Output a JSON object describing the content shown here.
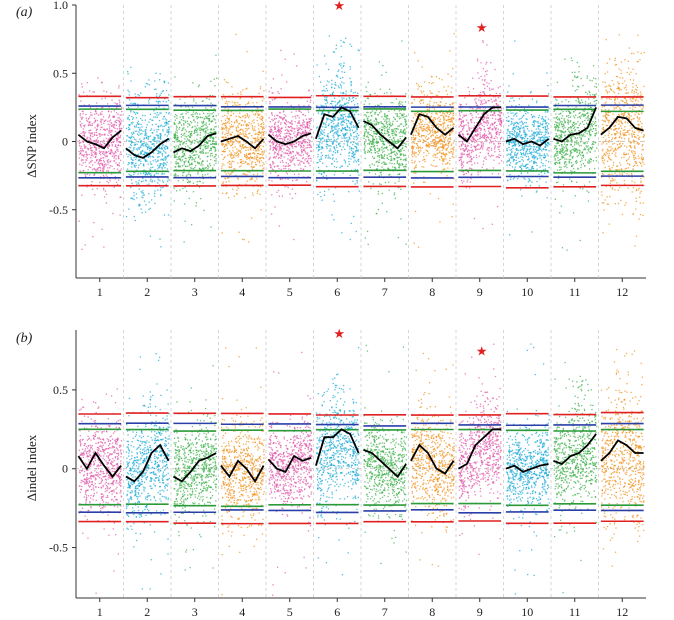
{
  "chart_data": [
    {
      "type": "scatter",
      "panel_label": "(a)",
      "ylabel": "ΔSNP index",
      "ylim": [
        -1.0,
        1.0
      ],
      "yticks": [
        -0.5,
        0,
        0.5,
        1.0
      ],
      "ytick_labels": [
        "-0.5",
        "0",
        "0.5",
        "1.0"
      ],
      "categories": [
        "1",
        "2",
        "3",
        "4",
        "5",
        "6",
        "7",
        "8",
        "9",
        "10",
        "11",
        "12"
      ],
      "category_colors": [
        "#e05aa8",
        "#1aaad6",
        "#3db04b",
        "#f0921c",
        "#e05aa8",
        "#1aaad6",
        "#3db04b",
        "#f0921c",
        "#e05aa8",
        "#1aaad6",
        "#3db04b",
        "#f0921c"
      ],
      "spread": [
        0.16,
        0.2,
        0.16,
        0.17,
        0.14,
        0.19,
        0.15,
        0.16,
        0.15,
        0.14,
        0.16,
        0.24
      ],
      "thresholds": {
        "p99_red": [
          0.33,
          -0.33
        ],
        "p95_blue": [
          0.26,
          -0.26
        ],
        "p90_green": [
          0.23,
          -0.22
        ]
      },
      "sliding_window_mean": [
        [
          0.05,
          0.0,
          -0.02,
          -0.05,
          0.03,
          0.08
        ],
        [
          -0.05,
          -0.1,
          -0.12,
          -0.08,
          -0.02,
          0.02
        ],
        [
          -0.08,
          -0.05,
          -0.07,
          -0.03,
          0.04,
          0.06
        ],
        [
          0.0,
          0.02,
          0.04,
          0.0,
          -0.05,
          0.02
        ],
        [
          0.05,
          0.0,
          -0.02,
          0.0,
          0.04,
          0.06
        ],
        [
          0.02,
          0.2,
          0.18,
          0.25,
          0.22,
          0.1
        ],
        [
          0.15,
          0.12,
          0.05,
          0.0,
          -0.05,
          0.03
        ],
        [
          0.05,
          0.2,
          0.18,
          0.1,
          0.05,
          0.1
        ],
        [
          0.05,
          0.0,
          0.1,
          0.2,
          0.25,
          0.25
        ],
        [
          0.0,
          0.02,
          -0.02,
          0.0,
          -0.03,
          0.02
        ],
        [
          0.02,
          0.0,
          0.05,
          0.06,
          0.1,
          0.25
        ],
        [
          0.05,
          0.1,
          0.18,
          0.17,
          0.1,
          0.08
        ]
      ],
      "peaks": [
        {
          "category": "6",
          "max": 0.8
        },
        {
          "category": "9",
          "max": 0.6
        },
        {
          "category": "11",
          "max": 0.65
        }
      ],
      "significant": [
        {
          "category": "6",
          "y": 1.0,
          "marker": "★"
        },
        {
          "category": "9",
          "y": 0.84,
          "marker": "★"
        }
      ]
    },
    {
      "type": "scatter",
      "panel_label": "(b)",
      "ylabel": "Δindel index",
      "ylim": [
        -0.82,
        0.88
      ],
      "yticks": [
        -0.5,
        0,
        0.5
      ],
      "ytick_labels": [
        "-0.5",
        "0",
        "0.5"
      ],
      "categories": [
        "1",
        "2",
        "3",
        "4",
        "5",
        "6",
        "7",
        "8",
        "9",
        "10",
        "11",
        "12"
      ],
      "category_colors": [
        "#e05aa8",
        "#1aaad6",
        "#3db04b",
        "#f0921c",
        "#e05aa8",
        "#1aaad6",
        "#3db04b",
        "#f0921c",
        "#e05aa8",
        "#1aaad6",
        "#3db04b",
        "#f0921c"
      ],
      "spread": [
        0.15,
        0.17,
        0.15,
        0.16,
        0.13,
        0.17,
        0.14,
        0.15,
        0.15,
        0.13,
        0.15,
        0.2
      ],
      "thresholds": {
        "p99_red": [
          0.35,
          -0.34
        ],
        "p95_blue": [
          0.28,
          -0.27
        ],
        "p90_green": [
          0.24,
          -0.23
        ]
      },
      "sliding_window_mean": [
        [
          0.08,
          0.0,
          0.1,
          0.02,
          -0.05,
          0.02
        ],
        [
          -0.05,
          -0.08,
          -0.02,
          0.1,
          0.15,
          0.05
        ],
        [
          -0.05,
          -0.08,
          -0.02,
          0.05,
          0.07,
          0.1
        ],
        [
          0.02,
          -0.05,
          0.05,
          0.0,
          -0.08,
          0.02
        ],
        [
          0.06,
          0.0,
          -0.02,
          0.08,
          0.05,
          0.07
        ],
        [
          0.02,
          0.2,
          0.2,
          0.25,
          0.22,
          0.1
        ],
        [
          0.12,
          0.1,
          0.05,
          0.0,
          -0.05,
          0.03
        ],
        [
          0.05,
          0.15,
          0.1,
          0.0,
          -0.03,
          0.05
        ],
        [
          0.0,
          0.03,
          0.15,
          0.2,
          0.25,
          0.25
        ],
        [
          0.0,
          0.02,
          -0.02,
          0.0,
          0.02,
          0.03
        ],
        [
          0.05,
          0.03,
          0.08,
          0.1,
          0.15,
          0.22
        ],
        [
          0.05,
          0.1,
          0.18,
          0.15,
          0.1,
          0.1
        ]
      ],
      "peaks": [
        {
          "category": "6",
          "max": 0.55
        },
        {
          "category": "9",
          "max": 0.5
        },
        {
          "category": "11",
          "max": 0.6
        }
      ],
      "significant": [
        {
          "category": "6",
          "y": 0.86,
          "marker": "★"
        },
        {
          "category": "9",
          "y": 0.75,
          "marker": "★"
        }
      ]
    }
  ]
}
